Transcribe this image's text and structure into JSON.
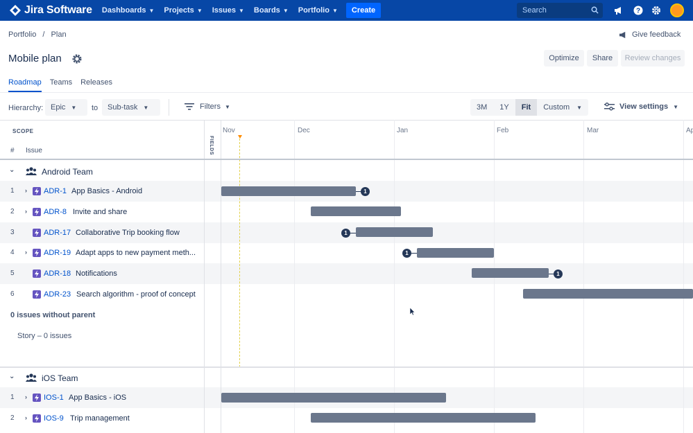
{
  "topnav": {
    "logo": "Jira Software",
    "items": [
      "Dashboards",
      "Projects",
      "Issues",
      "Boards",
      "Portfolio"
    ],
    "create": "Create",
    "search_placeholder": "Search"
  },
  "header": {
    "breadcrumb": [
      "Portfolio",
      "/",
      "Plan"
    ],
    "feedback": "Give feedback",
    "title": "Mobile plan",
    "buttons": {
      "optimize": "Optimize",
      "share": "Share",
      "review": "Review changes"
    }
  },
  "tabs": [
    "Roadmap",
    "Teams",
    "Releases"
  ],
  "toolbar": {
    "hierarchy_label": "Hierarchy:",
    "from": "Epic",
    "to_label": "to",
    "to": "Sub-task",
    "filters": "Filters",
    "ranges": [
      "3M",
      "1Y",
      "Fit",
      "Custom"
    ],
    "active_range": "Fit",
    "view_settings": "View settings"
  },
  "grid": {
    "scope": "SCOPE",
    "hash": "#",
    "issue": "Issue",
    "fields": "FIELDS",
    "months": [
      "Nov",
      "Dec",
      "Jan",
      "Feb",
      "Mar",
      "Ap"
    ]
  },
  "teams": [
    {
      "name": "Android Team",
      "issues": [
        {
          "num": "1",
          "key": "ADR-1",
          "title": "App Basics - Android",
          "expandable": true
        },
        {
          "num": "2",
          "key": "ADR-8",
          "title": "Invite and share",
          "expandable": true
        },
        {
          "num": "3",
          "key": "ADR-17",
          "title": "Collaborative Trip booking flow",
          "expandable": false
        },
        {
          "num": "4",
          "key": "ADR-19",
          "title": "Adapt apps to new payment meth...",
          "expandable": true
        },
        {
          "num": "5",
          "key": "ADR-18",
          "title": "Notifications",
          "expandable": false
        },
        {
          "num": "6",
          "key": "ADR-23",
          "title": "Search algorithm - proof of concept",
          "expandable": false
        }
      ],
      "no_parent": "0 issues without parent",
      "story": "Story – 0 issues"
    },
    {
      "name": "iOS Team",
      "issues": [
        {
          "num": "1",
          "key": "IOS-1",
          "title": "App Basics - iOS",
          "expandable": true
        },
        {
          "num": "2",
          "key": "IOS-9",
          "title": "Trip management",
          "expandable": true
        }
      ]
    }
  ],
  "dependency_count": "1",
  "colors": {
    "nav": "#0747A6",
    "create": "#0065FF",
    "link": "#0052CC",
    "bar": "#6B778C",
    "epic": "#6554C0",
    "today": "#FF8B00"
  }
}
